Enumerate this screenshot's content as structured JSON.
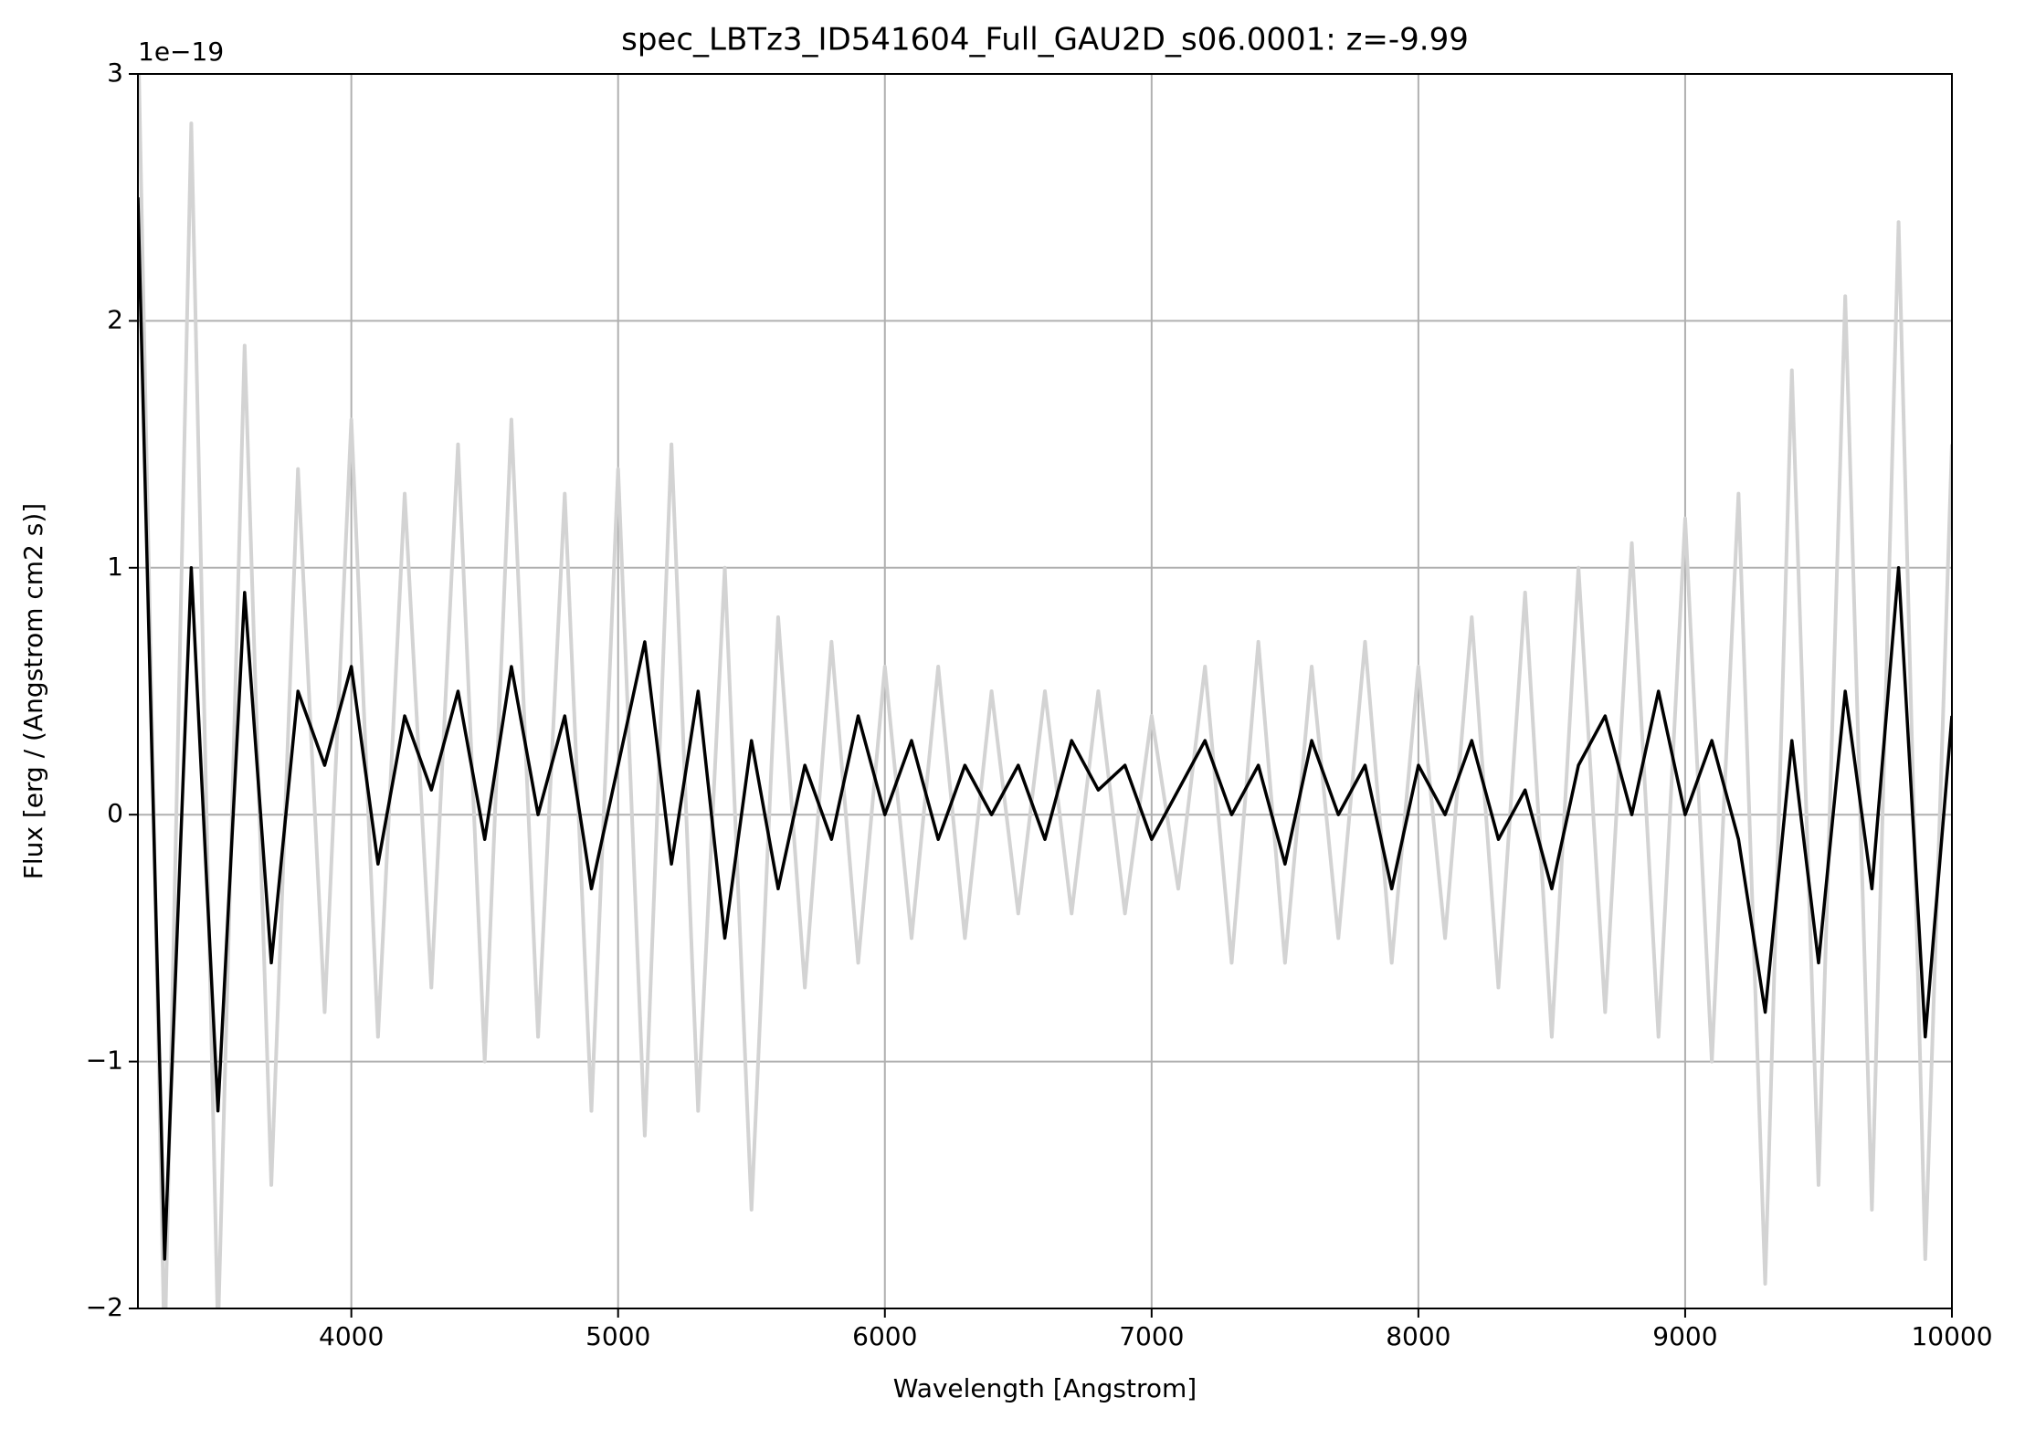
{
  "chart_data": {
    "type": "line",
    "title": "spec_LBTz3_ID541604_Full_GAU2D_s06.0001: z=-9.99",
    "x_label": "Wavelength [Angstrom]",
    "y_label": "Flux [erg / (Angstrom cm2 s)]",
    "y_offset_label": "1e−19",
    "x": [
      3200,
      3300,
      3400,
      3500,
      3600,
      3700,
      3800,
      3900,
      4000,
      4100,
      4200,
      4300,
      4400,
      4500,
      4600,
      4700,
      4800,
      4900,
      5000,
      5100,
      5200,
      5300,
      5400,
      5500,
      5600,
      5700,
      5800,
      5900,
      6000,
      6100,
      6200,
      6300,
      6400,
      6500,
      6600,
      6700,
      6800,
      6900,
      7000,
      7100,
      7200,
      7300,
      7400,
      7500,
      7600,
      7700,
      7800,
      7900,
      8000,
      8100,
      8200,
      8300,
      8400,
      8500,
      8600,
      8700,
      8800,
      8900,
      9000,
      9100,
      9200,
      9300,
      9400,
      9500,
      9600,
      9700,
      9800,
      9900,
      10000
    ],
    "series": [
      {
        "color": "#d3d3d3",
        "values": [
          3.2,
          -2.2,
          2.8,
          -2.1,
          1.9,
          -1.5,
          1.4,
          -0.8,
          1.6,
          -0.9,
          1.3,
          -0.7,
          1.5,
          -1.0,
          1.6,
          -0.9,
          1.3,
          -1.2,
          1.4,
          -1.3,
          1.5,
          -1.2,
          1.0,
          -1.6,
          0.8,
          -0.7,
          0.7,
          -0.6,
          0.6,
          -0.5,
          0.6,
          -0.5,
          0.5,
          -0.4,
          0.5,
          -0.4,
          0.5,
          -0.4,
          0.4,
          -0.3,
          0.6,
          -0.6,
          0.7,
          -0.6,
          0.6,
          -0.5,
          0.7,
          -0.6,
          0.6,
          -0.5,
          0.8,
          -0.7,
          0.9,
          -0.9,
          1.0,
          -0.8,
          1.1,
          -0.9,
          1.2,
          -1.0,
          1.3,
          -1.9,
          1.8,
          -1.5,
          2.1,
          -1.6,
          2.4,
          -1.8,
          1.5
        ]
      },
      {
        "color": "#000000",
        "values": [
          2.5,
          -1.8,
          1.0,
          -1.2,
          0.9,
          -0.6,
          0.5,
          0.2,
          0.6,
          -0.2,
          0.4,
          0.1,
          0.5,
          -0.1,
          0.6,
          0.0,
          0.4,
          -0.3,
          0.2,
          0.7,
          -0.2,
          0.5,
          -0.5,
          0.3,
          -0.3,
          0.2,
          -0.1,
          0.4,
          0.0,
          0.3,
          -0.1,
          0.2,
          0.0,
          0.2,
          -0.1,
          0.3,
          0.1,
          0.2,
          -0.1,
          0.1,
          0.3,
          0.0,
          0.2,
          -0.2,
          0.3,
          0.0,
          0.2,
          -0.3,
          0.2,
          0.0,
          0.3,
          -0.1,
          0.1,
          -0.3,
          0.2,
          0.4,
          0.0,
          0.5,
          0.0,
          0.3,
          -0.1,
          -0.8,
          0.3,
          -0.6,
          0.5,
          -0.3,
          1.0,
          -0.9,
          0.4
        ]
      }
    ],
    "xlim": [
      3200,
      10000
    ],
    "ylim": [
      -2,
      3
    ],
    "xticks": [
      4000,
      5000,
      6000,
      7000,
      8000,
      9000,
      10000
    ],
    "yticks": [
      {
        "value": -2,
        "label": "−2"
      },
      {
        "value": -1,
        "label": "−1"
      },
      0,
      1,
      2,
      3
    ],
    "grid": true
  }
}
